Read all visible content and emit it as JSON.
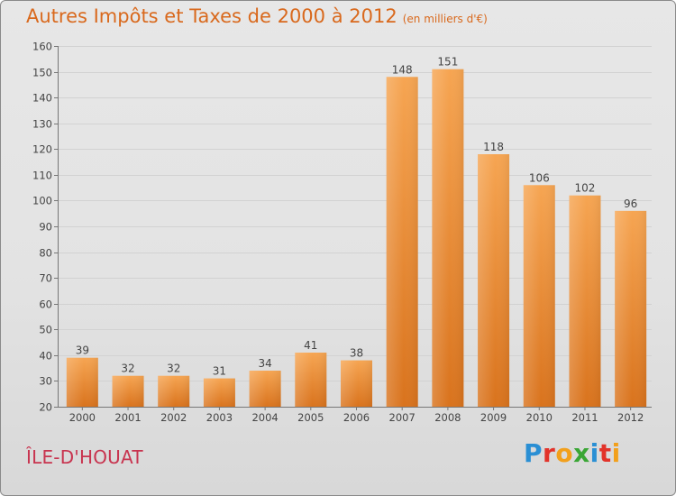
{
  "header": {
    "title": "Autres Impôts et Taxes de 2000 à 2012",
    "unit": "(en milliers d'€)"
  },
  "footer": {
    "commune": "ÎLE-D'HOUAT",
    "brand_letters": [
      "P",
      "r",
      "o",
      "x",
      "i",
      "t",
      "i"
    ],
    "brand_colors": [
      "#2a8fd4",
      "#e2332a",
      "#f2a01c",
      "#3aa635",
      "#2a8fd4",
      "#e2332a",
      "#f2a01c"
    ]
  },
  "colors": {
    "bar_top": "#f6a552",
    "bar_bottom": "#d9731d",
    "grid": "#d2d2d2"
  },
  "chart_data": {
    "type": "bar",
    "title": "Autres Impôts et Taxes de 2000 à 2012",
    "subtitle": "(en milliers d'€)",
    "categories": [
      "2000",
      "2001",
      "2002",
      "2003",
      "2004",
      "2005",
      "2006",
      "2007",
      "2008",
      "2009",
      "2010",
      "2011",
      "2012"
    ],
    "values": [
      39,
      32,
      32,
      31,
      34,
      41,
      38,
      148,
      151,
      118,
      106,
      102,
      96
    ],
    "ylim": [
      20,
      160
    ],
    "yticks": [
      20,
      30,
      40,
      50,
      60,
      70,
      80,
      90,
      100,
      110,
      120,
      130,
      140,
      150,
      160
    ],
    "grid": true,
    "legend": "none"
  }
}
